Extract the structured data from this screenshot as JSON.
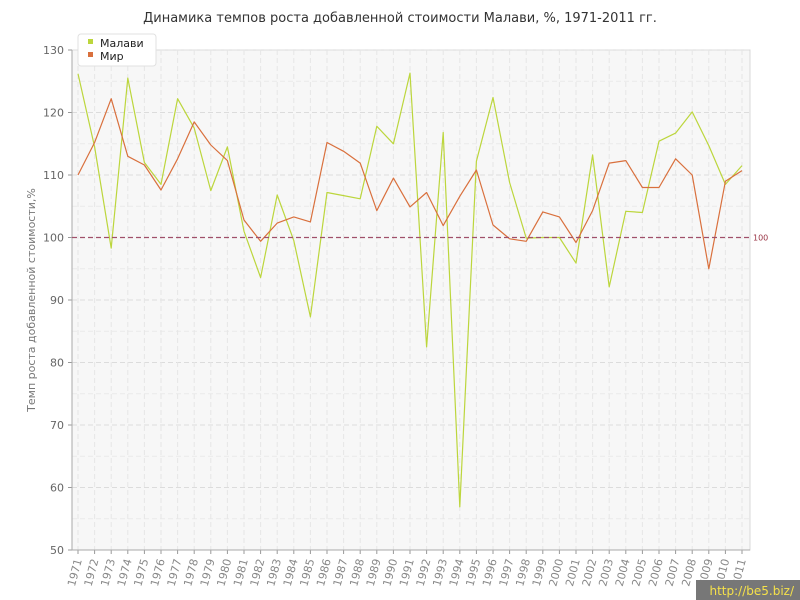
{
  "chart_data": {
    "type": "line",
    "title": "Динамика темпов роста добавленной стоимости Малави, %, 1971-2011 гг.",
    "ylabel": "Темп роста добавленной стоимости,%",
    "xlabel": "",
    "ylim": [
      50,
      130
    ],
    "yticks": [
      50,
      60,
      70,
      80,
      90,
      100,
      110,
      120,
      130
    ],
    "categories": [
      "1971",
      "1972",
      "1973",
      "1974",
      "1975",
      "1976",
      "1977",
      "1978",
      "1979",
      "1980",
      "1981",
      "1982",
      "1983",
      "1984",
      "1985",
      "1986",
      "1987",
      "1988",
      "1989",
      "1990",
      "1991",
      "1992",
      "1993",
      "1994",
      "1995",
      "1996",
      "1997",
      "1998",
      "1999",
      "2000",
      "2001",
      "2002",
      "2003",
      "2004",
      "2005",
      "2006",
      "2007",
      "2008",
      "2009",
      "2010",
      "2011"
    ],
    "series": [
      {
        "name": "Малави",
        "color": "#bcd63c",
        "values": [
          126.2,
          114.5,
          98.3,
          125.5,
          112.0,
          108.5,
          122.2,
          117.5,
          107.5,
          114.5,
          101.0,
          93.6,
          106.8,
          99.5,
          87.3,
          107.2,
          106.7,
          106.2,
          117.8,
          115.0,
          126.3,
          82.5,
          116.8,
          56.9,
          112.2,
          122.4,
          108.8,
          99.9,
          100.0,
          100.0,
          95.9,
          113.2,
          92.1,
          104.2,
          104.0,
          115.4,
          116.7,
          120.1,
          114.7,
          108.5,
          111.5
        ]
      },
      {
        "name": "Мир",
        "color": "#d9703d",
        "values": [
          110.0,
          115.2,
          122.2,
          113.0,
          111.6,
          107.6,
          112.6,
          118.5,
          114.8,
          112.3,
          102.8,
          99.4,
          102.3,
          103.3,
          102.5,
          115.2,
          113.8,
          111.9,
          104.3,
          109.5,
          104.9,
          107.2,
          101.9,
          106.6,
          110.8,
          102.0,
          99.8,
          99.4,
          104.1,
          103.3,
          99.2,
          104.3,
          111.9,
          112.3,
          108.0,
          108.0,
          112.6,
          110.0,
          95.0,
          109.0,
          110.7
        ]
      }
    ],
    "reference_line": {
      "value": 100,
      "label": "100",
      "color": "#a0506a"
    },
    "grid": true,
    "legend": "top-left"
  },
  "watermark": "http://be5.biz/"
}
